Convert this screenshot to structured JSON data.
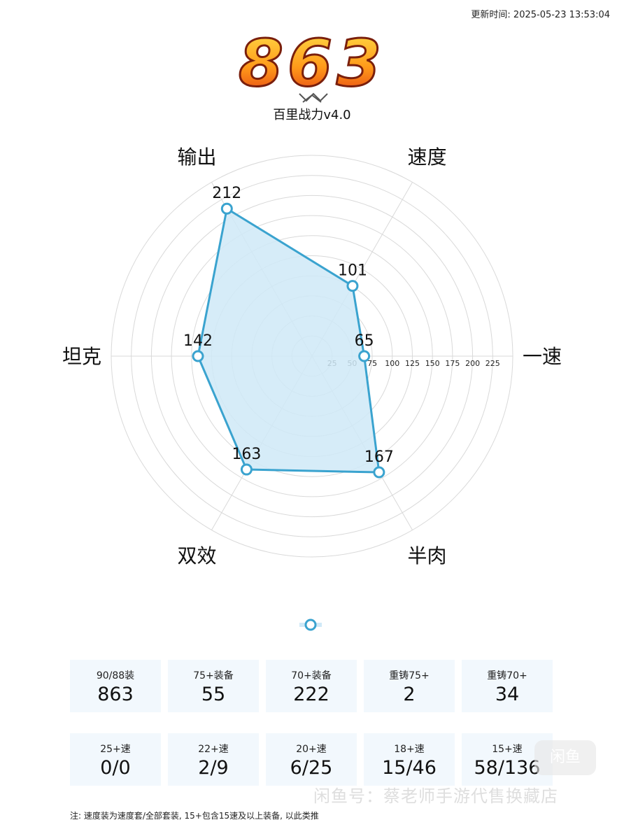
{
  "update_time": "更新时间: 2025-05-23 13:53:04",
  "header": {
    "score": "863",
    "subtitle": "百里战力v4.0"
  },
  "chart_data": {
    "type": "radar",
    "axes": [
      "速度",
      "一速",
      "半肉",
      "双效",
      "坦克",
      "输出"
    ],
    "values": [
      101,
      65,
      167,
      163,
      142,
      212
    ],
    "rlim": [
      0,
      250
    ],
    "r_ticks": [
      25,
      50,
      75,
      100,
      125,
      150,
      175,
      200,
      225
    ],
    "grid": true,
    "colors": {
      "line": "#3aa3cf",
      "fill": "#cfe9f7",
      "grid": "#d9d9d9"
    }
  },
  "stats": [
    [
      {
        "label": "90/88装",
        "value": "863"
      },
      {
        "label": "75+装备",
        "value": "55"
      },
      {
        "label": "70+装备",
        "value": "222"
      },
      {
        "label": "重铸75+",
        "value": "2"
      },
      {
        "label": "重铸70+",
        "value": "34"
      }
    ],
    [
      {
        "label": "25+速",
        "value": "0/0"
      },
      {
        "label": "22+速",
        "value": "2/9"
      },
      {
        "label": "20+速",
        "value": "6/25"
      },
      {
        "label": "18+速",
        "value": "15/46"
      },
      {
        "label": "15+速",
        "value": "58/136"
      }
    ]
  ],
  "note": "注: 速度装为速度套/全部套装, 15+包含15速及以上装备, 以此类推",
  "watermark": {
    "badge": "闲鱼",
    "text": "闲鱼号：蔡老师手游代售换藏店"
  }
}
